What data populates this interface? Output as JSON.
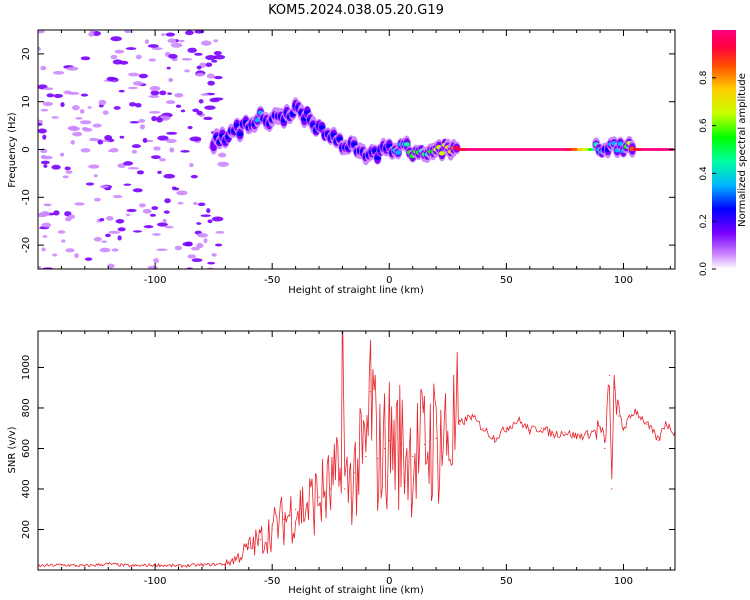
{
  "title": "KOM5.2024.038.05.20.G19",
  "chart_data": [
    {
      "type": "heatmap",
      "xlabel": "Height of straight line (km)",
      "ylabel": "Frequency (Hz)",
      "xlim": [
        -150,
        122
      ],
      "ylim": [
        -25,
        25
      ],
      "xticks": [
        -100,
        -50,
        0,
        50,
        100
      ],
      "yticks": [
        -20,
        -10,
        0,
        10,
        20
      ],
      "grid": false,
      "colorbar": {
        "label": "Normalized spectral amplitude",
        "range": [
          0,
          1
        ],
        "ticks": [
          "0.0",
          "0.2",
          "0.4",
          "0.6",
          "0.8"
        ],
        "colormap": "rainbow",
        "colors": [
          "#ffffff",
          "#cc88ff",
          "#7a00ff",
          "#0000ff",
          "#00b4ff",
          "#00ffa0",
          "#00ff00",
          "#c8ff00",
          "#ffd000",
          "#ff5000",
          "#ff0040",
          "#ff0080"
        ]
      },
      "noise_region": {
        "x": [
          -150,
          -70
        ],
        "y": [
          -25,
          25
        ],
        "level": "low (0.05-0.2)"
      },
      "trace": [
        {
          "x": -75,
          "y": 2.0,
          "amp": 0.22
        },
        {
          "x": -70,
          "y": 2.5,
          "amp": 0.25
        },
        {
          "x": -65,
          "y": 4.0,
          "amp": 0.28
        },
        {
          "x": -60,
          "y": 5.5,
          "amp": 0.3
        },
        {
          "x": -55,
          "y": 7.0,
          "amp": 0.33
        },
        {
          "x": -50,
          "y": 6.0,
          "amp": 0.28
        },
        {
          "x": -45,
          "y": 6.5,
          "amp": 0.3
        },
        {
          "x": -40,
          "y": 8.0,
          "amp": 0.27
        },
        {
          "x": -35,
          "y": 7.0,
          "amp": 0.3
        },
        {
          "x": -30,
          "y": 4.5,
          "amp": 0.28
        },
        {
          "x": -25,
          "y": 3.0,
          "amp": 0.3
        },
        {
          "x": -20,
          "y": 1.5,
          "amp": 0.28
        },
        {
          "x": -15,
          "y": 0.5,
          "amp": 0.27
        },
        {
          "x": -10,
          "y": -0.5,
          "amp": 0.25
        },
        {
          "x": -5,
          "y": -1.0,
          "amp": 0.28
        },
        {
          "x": 0,
          "y": 0.0,
          "amp": 0.3
        },
        {
          "x": 5,
          "y": 0.5,
          "amp": 0.35
        },
        {
          "x": 10,
          "y": -0.5,
          "amp": 0.55
        },
        {
          "x": 15,
          "y": 0.0,
          "amp": 0.45
        },
        {
          "x": 20,
          "y": 0.5,
          "amp": 0.6
        },
        {
          "x": 25,
          "y": 0.0,
          "amp": 0.7
        },
        {
          "x": 30,
          "y": 0.0,
          "amp": 0.95
        },
        {
          "x": 50,
          "y": 0.0,
          "amp": 0.98
        },
        {
          "x": 75,
          "y": 0.0,
          "amp": 0.98
        },
        {
          "x": 92,
          "y": 0.0,
          "amp": 0.3
        },
        {
          "x": 96,
          "y": 0.5,
          "amp": 0.35
        },
        {
          "x": 100,
          "y": 0.5,
          "amp": 0.4
        },
        {
          "x": 105,
          "y": 0.0,
          "amp": 0.95
        },
        {
          "x": 122,
          "y": 0.0,
          "amp": 0.98
        }
      ]
    },
    {
      "type": "line",
      "xlabel": "Height of straight line (km)",
      "ylabel": "SNR (v/v)",
      "xlim": [
        -150,
        122
      ],
      "ylim": [
        0,
        1180
      ],
      "xticks": [
        -100,
        -50,
        0,
        50,
        100
      ],
      "yticks": [
        200,
        400,
        600,
        800,
        1000
      ],
      "grid": false,
      "series": [
        {
          "color": "#e8232a",
          "x": [
            -150,
            -140,
            -130,
            -120,
            -110,
            -100,
            -90,
            -80,
            -70,
            -65,
            -60,
            -55,
            -50,
            -45,
            -40,
            -35,
            -30,
            -25,
            -21,
            -20,
            -19,
            -15,
            -10,
            -8,
            -5,
            -2,
            0,
            5,
            10,
            15,
            20,
            25,
            30,
            35,
            40,
            45,
            50,
            55,
            60,
            65,
            70,
            75,
            80,
            85,
            90,
            92,
            94,
            95,
            96,
            98,
            100,
            105,
            110,
            115,
            118,
            120,
            122
          ],
          "y": [
            20,
            25,
            20,
            30,
            20,
            25,
            20,
            25,
            30,
            60,
            110,
            150,
            200,
            250,
            300,
            320,
            360,
            400,
            450,
            1180,
            400,
            480,
            560,
            880,
            550,
            600,
            640,
            620,
            560,
            620,
            650,
            650,
            720,
            760,
            700,
            650,
            700,
            740,
            690,
            700,
            670,
            680,
            660,
            670,
            700,
            600,
            960,
            400,
            900,
            760,
            700,
            790,
            720,
            640,
            730,
            700,
            680
          ]
        }
      ]
    }
  ]
}
